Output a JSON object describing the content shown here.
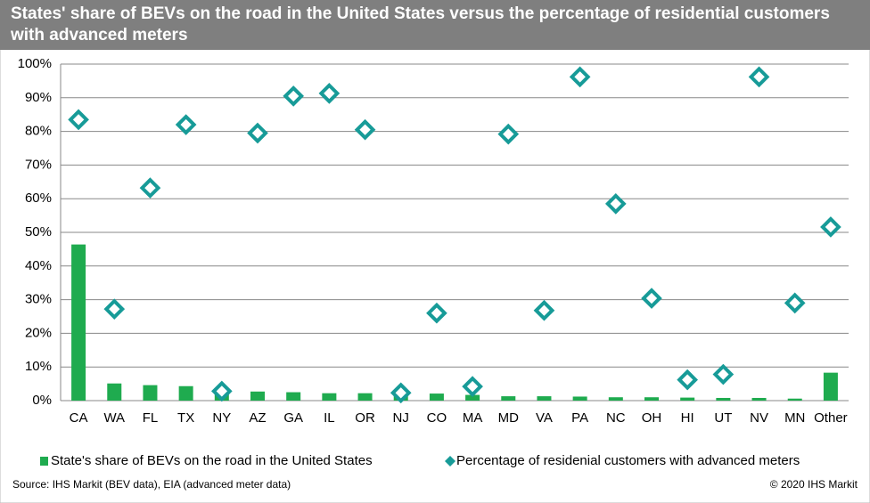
{
  "chart_data": {
    "type": "bar",
    "title": "States' share of BEVs on the road in the United States versus the percentage of residential customers with advanced meters",
    "source": "Source: IHS Markit (BEV data), EIA (advanced meter data)",
    "credit": "© 2020 IHS Markit",
    "categories": [
      "CA",
      "WA",
      "FL",
      "TX",
      "NY",
      "AZ",
      "GA",
      "IL",
      "OR",
      "NJ",
      "CO",
      "MA",
      "MD",
      "VA",
      "PA",
      "NC",
      "OH",
      "HI",
      "UT",
      "NV",
      "MN",
      "Other"
    ],
    "series": [
      {
        "name": "State's share of BEVs on the road in the United States",
        "type": "bar",
        "color": "#1fab4f",
        "values": [
          46.4,
          5.1,
          4.6,
          4.3,
          2.9,
          2.7,
          2.5,
          2.2,
          2.2,
          2.0,
          2.1,
          1.7,
          1.3,
          1.3,
          1.2,
          1.0,
          1.0,
          0.9,
          0.8,
          0.8,
          0.6,
          8.3
        ]
      },
      {
        "name": "Percentage of residenial customers with advanced meters",
        "type": "scatter",
        "color": "#179b98",
        "values": [
          83.5,
          27.2,
          63.2,
          82.0,
          2.8,
          79.5,
          90.5,
          91.3,
          80.5,
          2.3,
          26.0,
          4.2,
          79.2,
          26.8,
          96.2,
          58.5,
          30.4,
          6.2,
          7.8,
          96.2,
          29.0,
          51.6
        ]
      }
    ],
    "ylim": [
      0,
      100
    ],
    "yticks": [
      {
        "value": 0,
        "label": "0%"
      },
      {
        "value": 10,
        "label": "10%"
      },
      {
        "value": 20,
        "label": "20%"
      },
      {
        "value": 30,
        "label": "30%"
      },
      {
        "value": 40,
        "label": "40%"
      },
      {
        "value": 50,
        "label": "50%"
      },
      {
        "value": 60,
        "label": "60%"
      },
      {
        "value": 70,
        "label": "70%"
      },
      {
        "value": 80,
        "label": "80%"
      },
      {
        "value": 90,
        "label": "90%"
      },
      {
        "value": 100,
        "label": "100%"
      }
    ],
    "grid": true
  }
}
